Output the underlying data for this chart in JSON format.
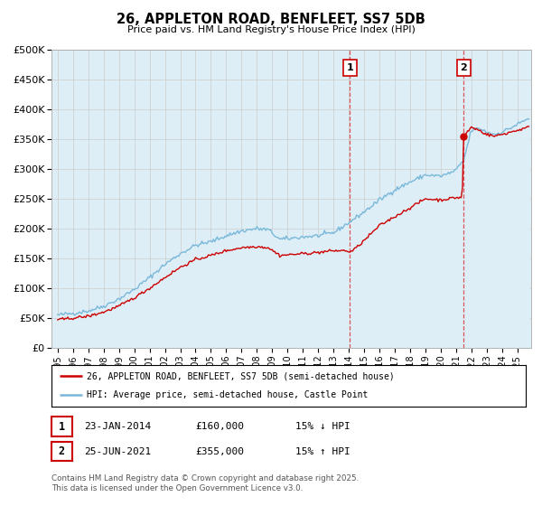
{
  "title": "26, APPLETON ROAD, BENFLEET, SS7 5DB",
  "subtitle": "Price paid vs. HM Land Registry's House Price Index (HPI)",
  "ylim": [
    0,
    500000
  ],
  "yticks": [
    0,
    50000,
    100000,
    150000,
    200000,
    250000,
    300000,
    350000,
    400000,
    450000,
    500000
  ],
  "ytick_labels": [
    "£0",
    "£50K",
    "£100K",
    "£150K",
    "£200K",
    "£250K",
    "£300K",
    "£350K",
    "£400K",
    "£450K",
    "£500K"
  ],
  "xlim_start": 1994.6,
  "xlim_end": 2025.9,
  "legend_label_red": "26, APPLETON ROAD, BENFLEET, SS7 5DB (semi-detached house)",
  "legend_label_blue": "HPI: Average price, semi-detached house, Castle Point",
  "annotation1_label": "1",
  "annotation1_date": "23-JAN-2014",
  "annotation1_price": "£160,000",
  "annotation1_hpi": "15% ↓ HPI",
  "annotation2_label": "2",
  "annotation2_date": "25-JUN-2021",
  "annotation2_price": "£355,000",
  "annotation2_hpi": "15% ↑ HPI",
  "footer": "Contains HM Land Registry data © Crown copyright and database right 2025.\nThis data is licensed under the Open Government Licence v3.0.",
  "red_color": "#cc0000",
  "blue_color": "#7ab8d9",
  "blue_fill": "#ddeef7",
  "vline_color": "#dd4444",
  "background_color": "#ffffff",
  "grid_color": "#cccccc",
  "sale1_x": 2014.07,
  "sale1_y": 160000,
  "sale2_x": 2021.5,
  "sale2_y": 355000
}
